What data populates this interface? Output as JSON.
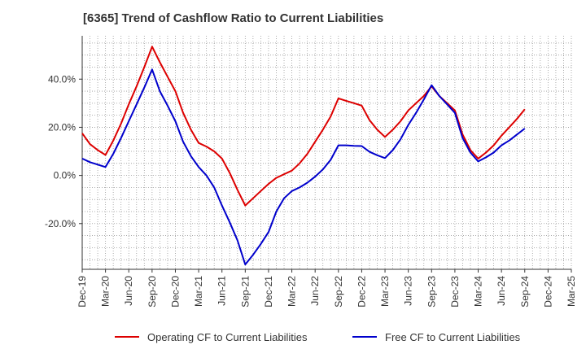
{
  "chart_data": {
    "type": "line",
    "title": "[6365]  Trend of Cashflow Ratio to Current Liabilities",
    "xlabel": "",
    "ylabel": "",
    "x_ticks": [
      "Dec-19",
      "Mar-20",
      "Jun-20",
      "Sep-20",
      "Dec-20",
      "Mar-21",
      "Jun-21",
      "Sep-21",
      "Dec-21",
      "Mar-22",
      "Jun-22",
      "Sep-22",
      "Dec-22",
      "Mar-23",
      "Jun-23",
      "Sep-23",
      "Dec-23",
      "Mar-24",
      "Jun-24",
      "Sep-24",
      "Dec-24",
      "Mar-25"
    ],
    "y_ticks": [
      {
        "value": 40,
        "label": "40.0%"
      },
      {
        "value": 20,
        "label": "20.0%"
      },
      {
        "value": 0,
        "label": "0.0%"
      },
      {
        "value": -20,
        "label": "-20.0%"
      }
    ],
    "ylim": [
      -39,
      58
    ],
    "grid": true,
    "legend_position": "bottom",
    "colors": {
      "operating": "#dd0000",
      "free": "#0000cc",
      "grid": "#999999",
      "axis": "#333333"
    },
    "series": [
      {
        "name": "Operating CF to Current Liabilities",
        "color": "#dd0000",
        "values": [
          [
            0,
            17.5
          ],
          [
            1,
            13.0
          ],
          [
            2,
            10.5
          ],
          [
            3,
            8.5
          ],
          [
            4,
            14.5
          ],
          [
            5,
            21.5
          ],
          [
            6,
            29.5
          ],
          [
            7,
            37.0
          ],
          [
            8,
            45.0
          ],
          [
            9,
            53.5
          ],
          [
            10,
            47.0
          ],
          [
            11,
            41.0
          ],
          [
            12,
            35.0
          ],
          [
            13,
            26.0
          ],
          [
            14,
            19.0
          ],
          [
            15,
            13.5
          ],
          [
            16,
            12.0
          ],
          [
            17,
            10.0
          ],
          [
            18,
            7.0
          ],
          [
            19,
            1.0
          ],
          [
            20,
            -6.0
          ],
          [
            21,
            -12.5
          ],
          [
            22,
            -9.5
          ],
          [
            23,
            -6.5
          ],
          [
            24,
            -3.5
          ],
          [
            25,
            -1.0
          ],
          [
            26,
            0.5
          ],
          [
            27,
            2.0
          ],
          [
            28,
            5.0
          ],
          [
            29,
            9.0
          ],
          [
            30,
            14.0
          ],
          [
            31,
            19.0
          ],
          [
            32,
            24.5
          ],
          [
            33,
            32.0
          ],
          [
            34,
            31.0
          ],
          [
            35,
            30.0
          ],
          [
            36,
            29.0
          ],
          [
            37,
            23.0
          ],
          [
            38,
            19.0
          ],
          [
            39,
            16.0
          ],
          [
            40,
            19.0
          ],
          [
            41,
            22.5
          ],
          [
            42,
            27.0
          ],
          [
            43,
            30.0
          ],
          [
            44,
            33.0
          ],
          [
            45,
            37.0
          ],
          [
            46,
            33.0
          ],
          [
            47,
            30.0
          ],
          [
            48,
            27.0
          ],
          [
            49,
            17.0
          ],
          [
            50,
            10.5
          ],
          [
            51,
            7.0
          ],
          [
            52,
            9.5
          ],
          [
            53,
            12.5
          ],
          [
            54,
            16.5
          ],
          [
            55,
            20.0
          ],
          [
            56,
            23.5
          ],
          [
            57,
            27.5
          ]
        ]
      },
      {
        "name": "Free CF to Current Liabilities",
        "color": "#0000cc",
        "values": [
          [
            0,
            7.0
          ],
          [
            1,
            5.5
          ],
          [
            2,
            4.5
          ],
          [
            3,
            3.5
          ],
          [
            4,
            9.0
          ],
          [
            5,
            15.5
          ],
          [
            6,
            22.5
          ],
          [
            7,
            29.5
          ],
          [
            8,
            36.5
          ],
          [
            9,
            44.0
          ],
          [
            10,
            35.0
          ],
          [
            11,
            29.0
          ],
          [
            12,
            22.5
          ],
          [
            13,
            14.0
          ],
          [
            14,
            8.0
          ],
          [
            15,
            3.5
          ],
          [
            16,
            0.0
          ],
          [
            17,
            -5.0
          ],
          [
            18,
            -12.5
          ],
          [
            19,
            -19.5
          ],
          [
            20,
            -27.0
          ],
          [
            21,
            -37.0
          ],
          [
            22,
            -33.0
          ],
          [
            23,
            -28.5
          ],
          [
            24,
            -23.5
          ],
          [
            25,
            -15.0
          ],
          [
            26,
            -9.5
          ],
          [
            27,
            -6.5
          ],
          [
            28,
            -5.0
          ],
          [
            29,
            -3.0
          ],
          [
            30,
            -0.5
          ],
          [
            31,
            2.5
          ],
          [
            32,
            6.5
          ],
          [
            33,
            12.5
          ],
          [
            34,
            12.5
          ],
          [
            35,
            12.3
          ],
          [
            36,
            12.2
          ],
          [
            37,
            9.8
          ],
          [
            38,
            8.4
          ],
          [
            39,
            7.2
          ],
          [
            40,
            10.5
          ],
          [
            41,
            15.0
          ],
          [
            42,
            21.0
          ],
          [
            43,
            26.0
          ],
          [
            44,
            31.5
          ],
          [
            45,
            37.5
          ],
          [
            46,
            33.0
          ],
          [
            47,
            29.5
          ],
          [
            48,
            26.0
          ],
          [
            49,
            15.5
          ],
          [
            50,
            9.5
          ],
          [
            51,
            5.8
          ],
          [
            52,
            7.5
          ],
          [
            53,
            9.5
          ],
          [
            54,
            12.5
          ],
          [
            55,
            14.5
          ],
          [
            56,
            17.0
          ],
          [
            57,
            19.5
          ]
        ]
      }
    ]
  }
}
